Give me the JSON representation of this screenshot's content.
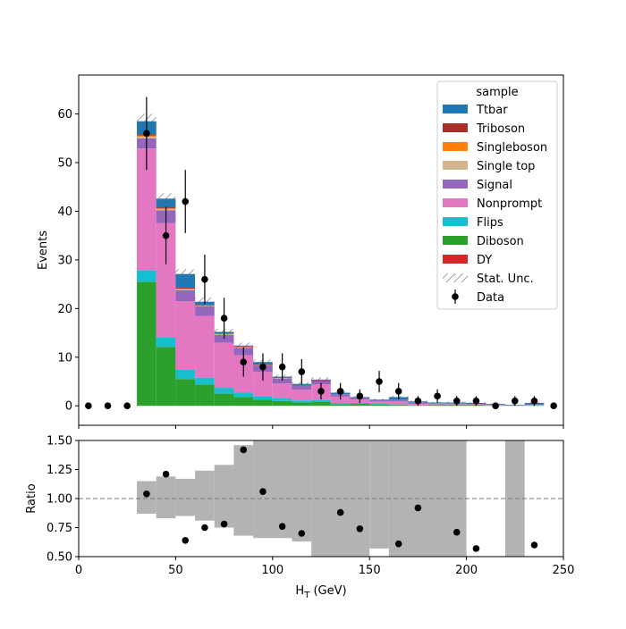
{
  "chart_data": [
    {
      "type": "stacked-histogram",
      "ylabel": "Events",
      "ylim": [
        -4,
        68
      ],
      "yticks": [
        "0",
        "10",
        "20",
        "30",
        "40",
        "50",
        "60"
      ],
      "xlim": [
        0,
        250
      ],
      "bin_edges": [
        0,
        10,
        20,
        30,
        40,
        50,
        60,
        70,
        80,
        90,
        100,
        110,
        120,
        130,
        140,
        150,
        160,
        170,
        180,
        190,
        200,
        210,
        220,
        230,
        240,
        250
      ],
      "legend": {
        "title": "sample",
        "placement": "upper right"
      },
      "stack": [
        {
          "name": "Diboson",
          "color": "#2ca02c",
          "values": [
            0,
            0,
            0,
            25.5,
            12.1,
            5.5,
            4.4,
            2.5,
            1.8,
            1.3,
            1.0,
            0.7,
            0.9,
            0.3,
            0.4,
            0.3,
            0.2,
            0.1,
            0.2,
            0.2,
            0.2,
            0.1,
            0,
            0.1,
            0
          ]
        },
        {
          "name": "Flips",
          "color": "#17becf",
          "values": [
            0,
            0,
            0,
            2.4,
            1.9,
            1.9,
            1.4,
            1.2,
            0.9,
            0.7,
            0.5,
            0.4,
            0.3,
            0.2,
            0.2,
            0.1,
            0.1,
            0.1,
            0.1,
            0.1,
            0,
            0,
            0,
            0,
            0
          ]
        },
        {
          "name": "Nonprompt",
          "color": "#e377c2",
          "values": [
            0,
            0,
            0,
            25.0,
            23.6,
            14.1,
            12.7,
            9.3,
            7.7,
            5.0,
            3.1,
            2.2,
            3.2,
            1.4,
            0.7,
            0.5,
            0.6,
            0.3,
            0.2,
            0.2,
            0.1,
            0.1,
            0,
            0.1,
            0
          ]
        },
        {
          "name": "Signal",
          "color": "#9467bd",
          "values": [
            0,
            0,
            0,
            2.1,
            2.6,
            2.3,
            2.0,
            1.6,
            1.5,
            1.3,
            1.0,
            0.8,
            0.7,
            0.5,
            0.4,
            0.3,
            0.4,
            0.2,
            0.1,
            0.1,
            0.1,
            0.1,
            0.1,
            0.1,
            0
          ]
        },
        {
          "name": "Single top",
          "color": "#d4b48c",
          "values": [
            0,
            0,
            0,
            0.3,
            0.2,
            0.2,
            0.1,
            0.1,
            0.1,
            0.1,
            0.1,
            0,
            0,
            0,
            0,
            0,
            0,
            0,
            0,
            0,
            0,
            0,
            0,
            0,
            0
          ]
        },
        {
          "name": "Singleboson",
          "color": "#ff7f0e",
          "values": [
            0,
            0,
            0,
            0.3,
            0.2,
            0.1,
            0.1,
            0.1,
            0.1,
            0,
            0,
            0,
            0,
            0,
            0,
            0,
            0,
            0,
            0,
            0,
            0,
            0,
            0,
            0,
            0
          ]
        },
        {
          "name": "Triboson",
          "color": "#a8302a",
          "values": [
            0,
            0,
            0,
            0.2,
            0.2,
            0.2,
            0.1,
            0.1,
            0.1,
            0.1,
            0.1,
            0.1,
            0.1,
            0,
            0,
            0,
            0,
            0,
            0,
            0,
            0,
            0,
            0,
            0,
            0
          ]
        },
        {
          "name": "Ttbar",
          "color": "#1f77b4",
          "values": [
            0,
            0,
            0,
            2.7,
            1.8,
            2.8,
            0.6,
            0.3,
            0.2,
            0.5,
            0.2,
            0.3,
            0.2,
            0.3,
            0.1,
            0.1,
            0.5,
            0.2,
            0.1,
            0.1,
            0.2,
            0.1,
            0.1,
            0.3,
            0
          ]
        },
        {
          "name": "DY",
          "color": "#d62728",
          "values": [
            0,
            0,
            0,
            0,
            0,
            0,
            0,
            0,
            0,
            0,
            0,
            0,
            0,
            0,
            0,
            0,
            0,
            0,
            0,
            0,
            0,
            0,
            0,
            0,
            0
          ]
        }
      ],
      "stat_unc": {
        "name": "Stat. Unc.",
        "rel": [
          0,
          0,
          0,
          0.026,
          0.026,
          0.036,
          0.04,
          0.045,
          0.05,
          0.06,
          0.07,
          0.08,
          0.08,
          0.1,
          0.12,
          0.15,
          0.15,
          0.2,
          0.2,
          0.25,
          0.3,
          0.3,
          0.3,
          0.3,
          0
        ]
      },
      "data": {
        "name": "Data",
        "x": [
          5,
          15,
          25,
          35,
          45,
          55,
          65,
          75,
          85,
          95,
          105,
          115,
          125,
          135,
          145,
          155,
          165,
          175,
          185,
          195,
          205,
          215,
          225,
          235,
          245
        ],
        "y": [
          0,
          0,
          0,
          56,
          35,
          42,
          26,
          18,
          9,
          8,
          8,
          7,
          3,
          3,
          2,
          5,
          3,
          1,
          2,
          1,
          1,
          0,
          1,
          1,
          0
        ],
        "err": [
          0,
          0,
          0,
          7.5,
          5.9,
          6.5,
          5.1,
          4.2,
          3.0,
          2.8,
          2.8,
          2.6,
          1.7,
          1.7,
          1.4,
          2.2,
          1.7,
          1.0,
          1.4,
          1.0,
          1.0,
          0,
          1.0,
          1.0,
          0
        ]
      },
      "legend_entries": [
        "Ttbar",
        "Triboson",
        "Singleboson",
        "Single top",
        "Signal",
        "Nonprompt",
        "Flips",
        "Diboson",
        "DY",
        "Stat. Unc.",
        "Data"
      ]
    },
    {
      "type": "ratio",
      "ylabel": "Ratio",
      "xlabel_main": "H",
      "xlabel_sub": "T",
      "xlabel_unit": " (GeV)",
      "ylim": [
        0.5,
        1.5
      ],
      "yticks": [
        "0.50",
        "0.75",
        "1.00",
        "1.25",
        "1.50"
      ],
      "xlim": [
        0,
        250
      ],
      "xticks": [
        "0",
        "50",
        "100",
        "150",
        "200",
        "250"
      ],
      "reference_line": 1.0,
      "unc_band": [
        {
          "x0": 30,
          "x1": 40,
          "lo": 0.87,
          "hi": 1.15
        },
        {
          "x0": 40,
          "x1": 50,
          "lo": 0.83,
          "hi": 1.19
        },
        {
          "x0": 50,
          "x1": 60,
          "lo": 0.85,
          "hi": 1.17
        },
        {
          "x0": 60,
          "x1": 70,
          "lo": 0.81,
          "hi": 1.24
        },
        {
          "x0": 70,
          "x1": 80,
          "lo": 0.75,
          "hi": 1.29
        },
        {
          "x0": 80,
          "x1": 90,
          "lo": 0.68,
          "hi": 1.46
        },
        {
          "x0": 90,
          "x1": 110,
          "lo": 0.66,
          "hi": 1.5
        },
        {
          "x0": 110,
          "x1": 120,
          "lo": 0.63,
          "hi": 1.5
        },
        {
          "x0": 120,
          "x1": 150,
          "lo": 0.5,
          "hi": 1.5
        },
        {
          "x0": 150,
          "x1": 160,
          "lo": 0.57,
          "hi": 1.5
        },
        {
          "x0": 160,
          "x1": 200,
          "lo": 0.5,
          "hi": 1.5
        },
        {
          "x0": 220,
          "x1": 230,
          "lo": 0.5,
          "hi": 1.5
        }
      ],
      "points": {
        "x": [
          35,
          45,
          55,
          65,
          75,
          85,
          95,
          105,
          115,
          135,
          145,
          165,
          175,
          195,
          205,
          235
        ],
        "y": [
          1.04,
          1.21,
          0.64,
          0.75,
          0.78,
          1.42,
          1.06,
          0.76,
          0.7,
          0.88,
          0.74,
          0.61,
          0.92,
          0.71,
          0.57,
          0.6
        ]
      }
    }
  ]
}
